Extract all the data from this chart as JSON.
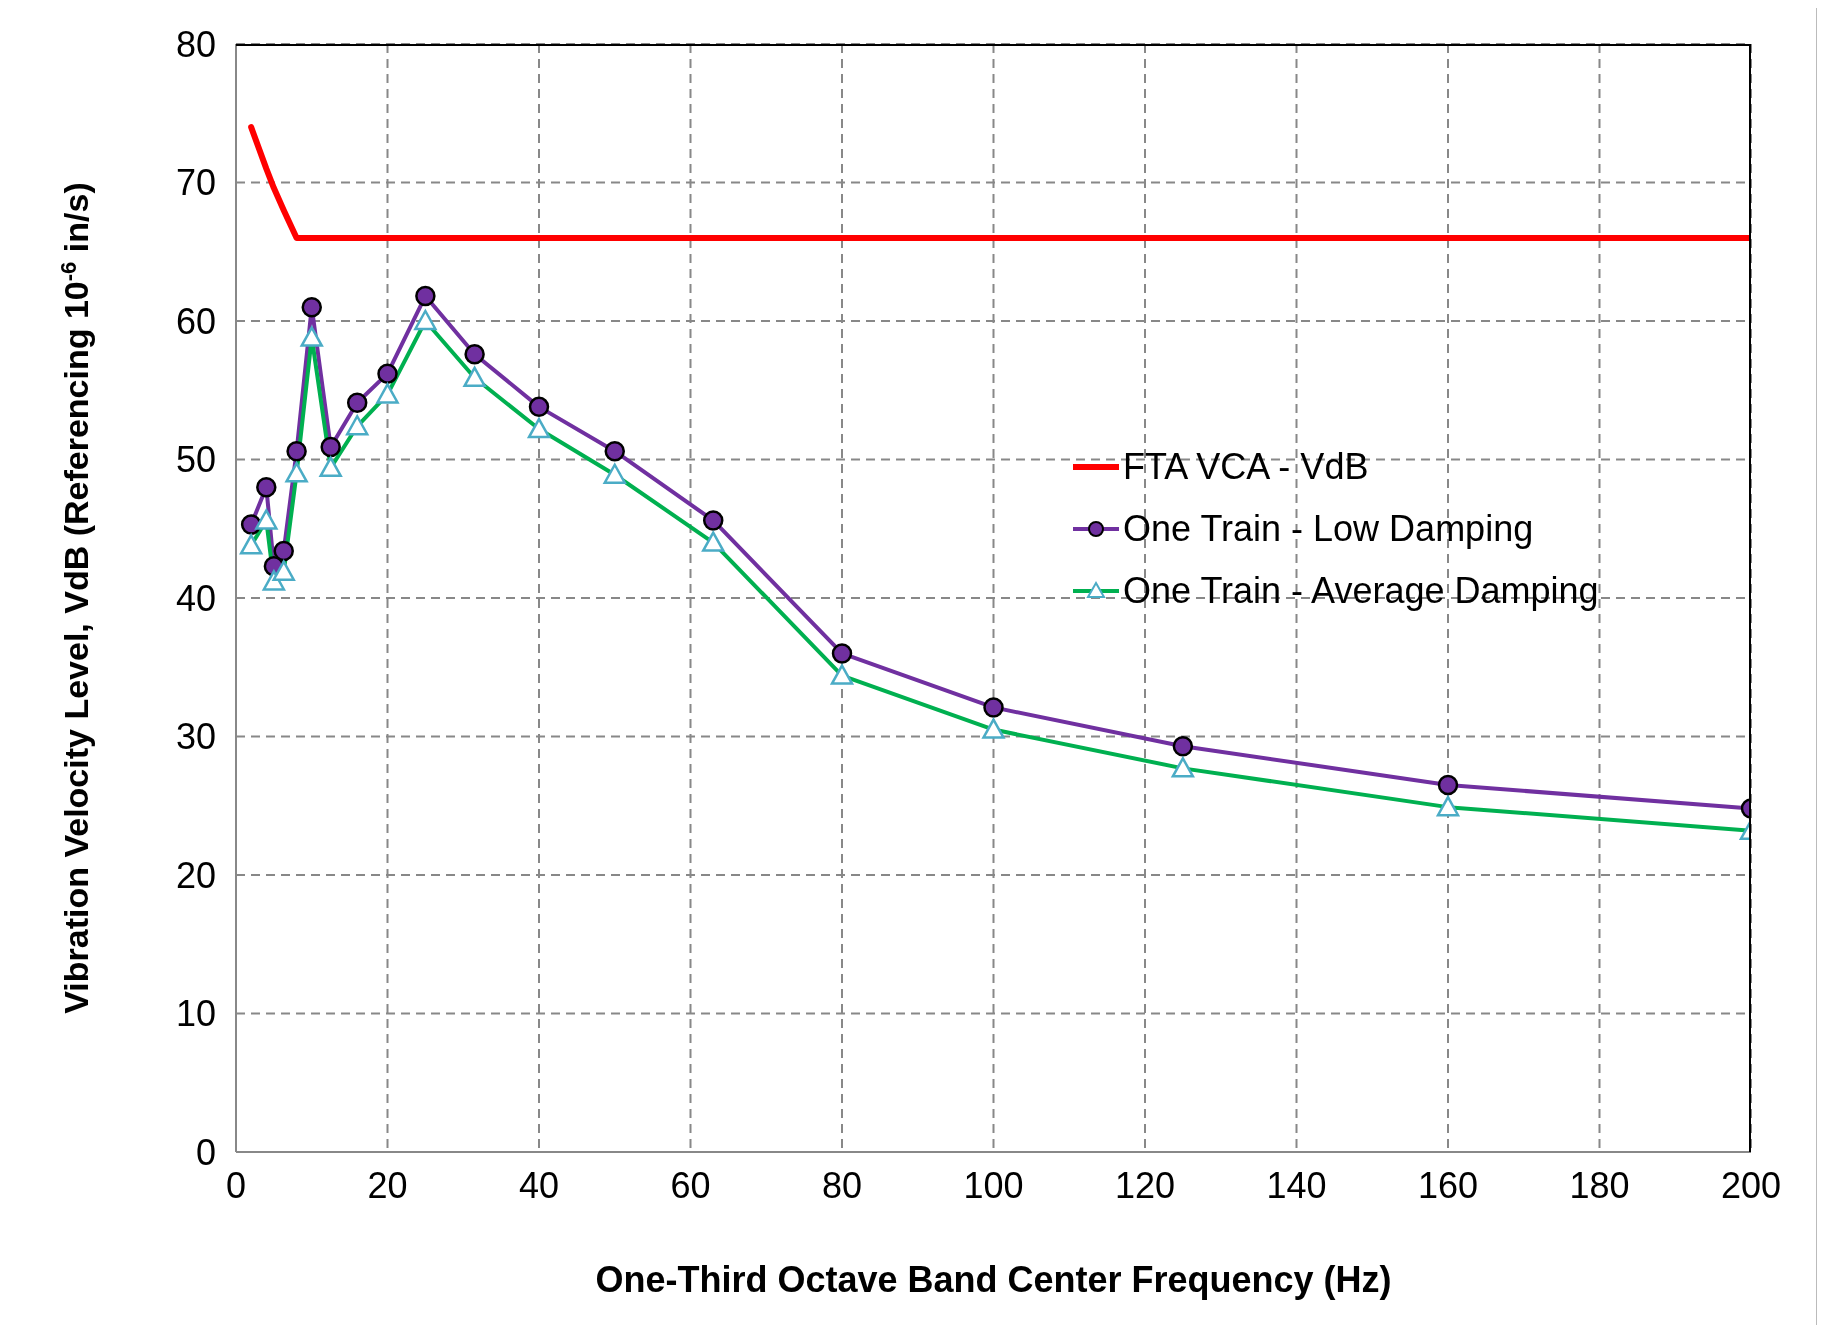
{
  "chart_data": {
    "type": "line",
    "xlabel": "One-Third Octave Band Center Frequency (Hz)",
    "ylabel": "Vibration Velocity Level, VdB (Referencing 10$^{-6}$ in/s)",
    "x": [
      2,
      4,
      5,
      6.3,
      8,
      10,
      12.5,
      16,
      20,
      25,
      31.5,
      40,
      50,
      63,
      80,
      100,
      125,
      160,
      200
    ],
    "series": [
      {
        "name": "FTA VCA - VdB",
        "color": "#ff0000",
        "marker": "none",
        "values": [
          74,
          71,
          69.6,
          68,
          66,
          66,
          66,
          66,
          66,
          66,
          66,
          66,
          66,
          66,
          66,
          66,
          66,
          66,
          66
        ]
      },
      {
        "name": "One Train - Low Damping",
        "color": "#7030a0",
        "marker": "circle",
        "values": [
          45.3,
          48,
          42.3,
          43.4,
          50.6,
          61,
          50.9,
          54.1,
          56.2,
          61.8,
          57.6,
          53.8,
          50.6,
          45.6,
          36,
          32.1,
          29.3,
          26.5,
          24.8
        ]
      },
      {
        "name": "One Train - Average Damping",
        "color": "#00b050",
        "marker": "triangle",
        "values": [
          43.8,
          45.6,
          41.2,
          41.9,
          49,
          58.8,
          49.4,
          52.4,
          54.7,
          60,
          55.9,
          52.2,
          48.9,
          44,
          34.4,
          30.5,
          27.7,
          24.9,
          23.2
        ]
      }
    ],
    "xlim": [
      0,
      200
    ],
    "xticks": [
      0,
      20,
      40,
      60,
      80,
      100,
      120,
      140,
      160,
      180,
      200
    ],
    "ylim": [
      0,
      80
    ],
    "yticks": [
      0,
      10,
      20,
      30,
      40,
      50,
      60,
      70,
      80
    ],
    "grid": true,
    "legend": "right",
    "line_style": "solid"
  }
}
